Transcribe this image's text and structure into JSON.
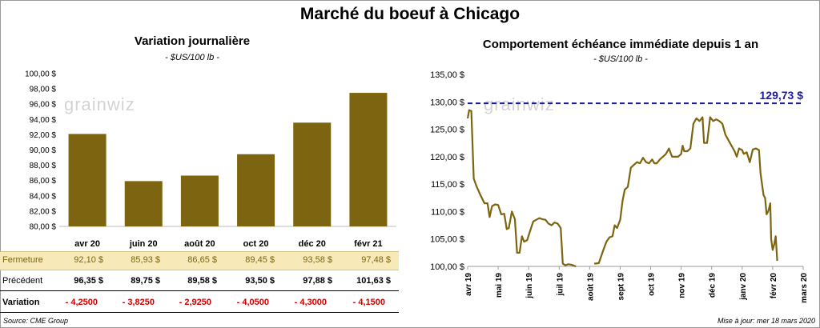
{
  "main_title": "Marché du boeuf à Chicago",
  "left": {
    "title": "Variation journalière",
    "subtitle": "- $US/100 lb -",
    "watermark": "grainwiz"
  },
  "right": {
    "title": "Comportement échéance immédiate depuis 1 an",
    "subtitle": "- $US/100 lb -",
    "watermark": "grainwiz",
    "ref_label": "129,73 $"
  },
  "table": {
    "fermeture_label": "Fermeture",
    "precedent_label": "Précédent",
    "variation_label": "Variation",
    "fermeture": [
      "92,10  $",
      "85,93  $",
      "86,65  $",
      "89,45  $",
      "93,58  $",
      "97,48  $"
    ],
    "precedent": [
      "96,35  $",
      "89,75  $",
      "89,58  $",
      "93,50  $",
      "97,88  $",
      "101,63  $"
    ],
    "variation": [
      "- 4,2500",
      "- 3,8250",
      "- 2,9250",
      "- 4,0500",
      "- 4,3000",
      "- 4,1500"
    ]
  },
  "footer": {
    "source": "Source: CME Group",
    "updated": "Mise à jour: mer 18 mars 2020"
  },
  "colors": {
    "bar": "#7d6410",
    "line": "#7d6410",
    "ref_line": "#1a1aa6",
    "neg": "#cc0000",
    "highlight": "#f7e9b8"
  },
  "chart_data": [
    {
      "type": "bar",
      "categories": [
        "avr 20",
        "juin 20",
        "août 20",
        "oct 20",
        "déc 20",
        "févr 21"
      ],
      "values": [
        92.1,
        85.93,
        86.65,
        89.45,
        93.58,
        97.48
      ],
      "ylim": [
        80,
        100
      ],
      "yticks": [
        80,
        82,
        84,
        86,
        88,
        90,
        92,
        94,
        96,
        98,
        100
      ],
      "ytick_labels": [
        "80,00 $",
        "82,00 $",
        "84,00 $",
        "86,00 $",
        "88,00 $",
        "90,00 $",
        "92,00 $",
        "94,00 $",
        "96,00 $",
        "98,00 $",
        "100,00 $"
      ],
      "grid": false
    },
    {
      "type": "line",
      "x_labels": [
        "avr 19",
        "mai 19",
        "juin 19",
        "juil 19",
        "août 19",
        "sept 19",
        "oct 19",
        "nov 19",
        "déc 19",
        "janv 20",
        "févr 20",
        "mars 20"
      ],
      "ylim": [
        100,
        135
      ],
      "yticks": [
        100,
        105,
        110,
        115,
        120,
        125,
        130,
        135
      ],
      "ytick_labels": [
        "100,00 $",
        "105,00 $",
        "110,00 $",
        "115,00 $",
        "120,00 $",
        "125,00 $",
        "130,00 $",
        "135,00 $"
      ],
      "reference_value": 129.73,
      "series": [
        {
          "values": [
            [
              0,
              127
            ],
            [
              0.05,
              128.5
            ],
            [
              0.12,
              128.3
            ],
            [
              0.2,
              116
            ],
            [
              0.3,
              114.5
            ],
            [
              0.42,
              113
            ],
            [
              0.55,
              111.5
            ],
            [
              0.65,
              111.5
            ],
            [
              0.72,
              109
            ],
            [
              0.8,
              111
            ],
            [
              0.9,
              111.3
            ],
            [
              1,
              111.2
            ],
            [
              1.1,
              109.5
            ],
            [
              1.2,
              109.6
            ],
            [
              1.28,
              106.8
            ],
            [
              1.35,
              107
            ],
            [
              1.45,
              110
            ],
            [
              1.55,
              108.6
            ],
            [
              1.62,
              102.5
            ],
            [
              1.7,
              102.5
            ],
            [
              1.78,
              105.5
            ],
            [
              1.85,
              104.5
            ],
            [
              1.95,
              104.8
            ],
            [
              2.05,
              106.5
            ],
            [
              2.15,
              108.2
            ],
            [
              2.25,
              108.5
            ],
            [
              2.35,
              108.8
            ],
            [
              2.45,
              108.6
            ],
            [
              2.55,
              108.5
            ],
            [
              2.65,
              107.8
            ],
            [
              2.75,
              107.5
            ],
            [
              2.85,
              108
            ],
            [
              2.95,
              107.8
            ],
            [
              3.05,
              107
            ],
            [
              3.12,
              100.5
            ],
            [
              3.2,
              100.2
            ],
            [
              3.3,
              100.4
            ],
            [
              3.4,
              100.3
            ],
            [
              3.55,
              100
            ],
            [
              4.15,
              100.5
            ],
            [
              4.3,
              100.6
            ],
            [
              4.45,
              103
            ],
            [
              4.55,
              104.5
            ],
            [
              4.65,
              105.3
            ],
            [
              4.75,
              105.5
            ],
            [
              4.82,
              107.5
            ],
            [
              4.9,
              107
            ],
            [
              5,
              108.5
            ],
            [
              5.08,
              112
            ],
            [
              5.15,
              114
            ],
            [
              5.25,
              114.5
            ],
            [
              5.35,
              118
            ],
            [
              5.45,
              118.5
            ],
            [
              5.55,
              119
            ],
            [
              5.65,
              118.8
            ],
            [
              5.75,
              119.8
            ],
            [
              5.85,
              119
            ],
            [
              5.95,
              118.8
            ],
            [
              6.05,
              119.5
            ],
            [
              6.12,
              118.8
            ],
            [
              6.2,
              118.8
            ],
            [
              6.3,
              119.5
            ],
            [
              6.4,
              120
            ],
            [
              6.5,
              120.5
            ],
            [
              6.6,
              121.5
            ],
            [
              6.7,
              120
            ],
            [
              6.8,
              120
            ],
            [
              6.9,
              120
            ],
            [
              7.0,
              120.5
            ],
            [
              7.05,
              122
            ],
            [
              7.1,
              121
            ],
            [
              7.2,
              121
            ],
            [
              7.3,
              121.5
            ],
            [
              7.4,
              126
            ],
            [
              7.5,
              127
            ],
            [
              7.6,
              126.5
            ],
            [
              7.7,
              127.2
            ],
            [
              7.75,
              122.5
            ],
            [
              7.85,
              122.5
            ],
            [
              7.95,
              127.2
            ],
            [
              8.05,
              126.5
            ],
            [
              8.15,
              126.8
            ],
            [
              8.25,
              126.5
            ],
            [
              8.35,
              126
            ],
            [
              8.45,
              124
            ],
            [
              8.55,
              123
            ],
            [
              8.65,
              122
            ],
            [
              8.75,
              121
            ],
            [
              8.82,
              120
            ],
            [
              8.9,
              121.5
            ],
            [
              9.0,
              121.2
            ],
            [
              9.05,
              120.5
            ],
            [
              9.15,
              120.8
            ],
            [
              9.25,
              119
            ],
            [
              9.35,
              121.3
            ],
            [
              9.45,
              121.5
            ],
            [
              9.55,
              121.2
            ],
            [
              9.6,
              117
            ],
            [
              9.7,
              113
            ],
            [
              9.75,
              112.5
            ],
            [
              9.8,
              109.5
            ],
            [
              9.85,
              110
            ],
            [
              9.88,
              110.5
            ],
            [
              9.92,
              111.5
            ],
            [
              9.95,
              105
            ],
            [
              10.0,
              103
            ],
            [
              10.05,
              104
            ],
            [
              10.1,
              105.5
            ],
            [
              10.15,
              101
            ]
          ]
        }
      ],
      "grid": false
    }
  ]
}
